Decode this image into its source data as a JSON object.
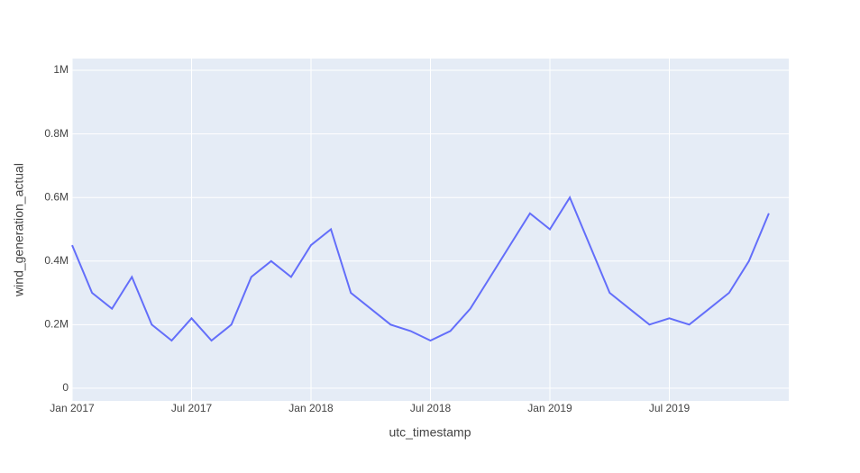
{
  "chart_data": {
    "type": "line",
    "x_label": "utc_timestamp",
    "y_label": "wind_generation_actual",
    "x": [
      "2017-01",
      "2017-02",
      "2017-03",
      "2017-04",
      "2017-05",
      "2017-06",
      "2017-07",
      "2017-08",
      "2017-09",
      "2017-10",
      "2017-11",
      "2017-12",
      "2018-01",
      "2018-02",
      "2018-03",
      "2018-04",
      "2018-05",
      "2018-06",
      "2018-07",
      "2018-08",
      "2018-09",
      "2018-10",
      "2018-11",
      "2018-12",
      "2019-01",
      "2019-02",
      "2019-03",
      "2019-04",
      "2019-05",
      "2019-06",
      "2019-07",
      "2019-08",
      "2019-09",
      "2019-10",
      "2019-11",
      "2019-12"
    ],
    "series": [
      {
        "name": "wind_generation_actual",
        "color": "#636efa",
        "values": [
          450000,
          300000,
          250000,
          350000,
          200000,
          150000,
          220000,
          150000,
          200000,
          350000,
          400000,
          350000,
          450000,
          500000,
          300000,
          250000,
          200000,
          180000,
          150000,
          180000,
          250000,
          350000,
          450000,
          550000,
          500000,
          600000,
          450000,
          300000,
          250000,
          200000,
          220000,
          200000,
          250000,
          300000,
          400000,
          550000
        ]
      }
    ],
    "xlim": [
      "2017-01",
      "2020-01"
    ],
    "xticks": [
      {
        "value": "2017-01",
        "label": "Jan 2017"
      },
      {
        "value": "2017-07",
        "label": "Jul 2017"
      },
      {
        "value": "2018-01",
        "label": "Jan 2018"
      },
      {
        "value": "2018-07",
        "label": "Jul 2018"
      },
      {
        "value": "2019-01",
        "label": "Jan 2019"
      },
      {
        "value": "2019-07",
        "label": "Jul 2019"
      }
    ],
    "ylim": [
      -40000,
      1037000
    ],
    "yticks": [
      0,
      {
        "value": 200000,
        "label": "0.2M"
      },
      {
        "value": 400000,
        "label": "0.4M"
      },
      {
        "value": 600000,
        "label": "0.6M"
      },
      {
        "value": 800000,
        "label": "0.8M"
      },
      {
        "value": 1000000,
        "label": "1M"
      }
    ],
    "grid": true
  }
}
